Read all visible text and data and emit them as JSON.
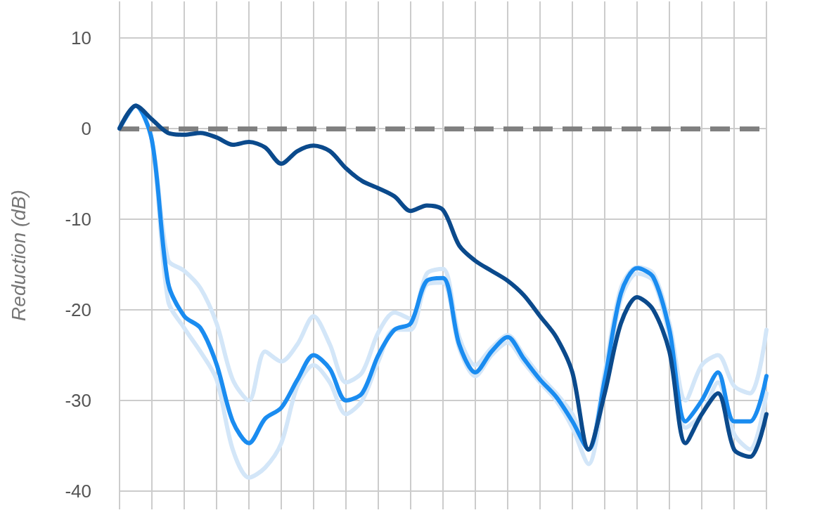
{
  "chart_data": {
    "type": "line",
    "ylabel": "Reduction (dB)",
    "categories": [
      null,
      null,
      null,
      null,
      null,
      null,
      null,
      null,
      null,
      null,
      null,
      null,
      null,
      null,
      null,
      null,
      null,
      null,
      null,
      null,
      null,
      null,
      null,
      null,
      null,
      null,
      null,
      null,
      null,
      null,
      null,
      null,
      null,
      null,
      null,
      null,
      null,
      null,
      null,
      null,
      null
    ],
    "series": [
      {
        "color": "#d3e6f8",
        "values": [
          0,
          2.5,
          -1.3,
          -14.5,
          -15.7,
          -17.6,
          -21.5,
          -27.7,
          -30,
          -24.6,
          -25.7,
          -23.8,
          -20.7,
          -23.8,
          -28,
          -26.9,
          -22.5,
          -20.3,
          -21,
          -16,
          -15.5,
          -23,
          -26.1,
          -24.2,
          -22.8,
          -25,
          -27.3,
          -29.2,
          -31.5,
          -35.4,
          -26.9,
          -17.6,
          -15.3,
          -16,
          -21.5,
          -30,
          -26.1,
          -25,
          -28.4,
          -29.2,
          -22.2
        ]
      },
      {
        "color": "#d3e6f8",
        "values": [
          0,
          2.5,
          -1.3,
          -19,
          -22,
          -24.6,
          -27.7,
          -35.4,
          -38.5,
          -37.4,
          -34.7,
          -28.4,
          -26.1,
          -28,
          -31.5,
          -30,
          -25.7,
          -22.2,
          -22.2,
          -17.2,
          -17,
          -24.2,
          -27.3,
          -25,
          -23.6,
          -25.8,
          -28,
          -30,
          -33,
          -37,
          -28.4,
          -18.8,
          -16,
          -16.8,
          -23,
          -33,
          -31.5,
          -28,
          -33.7,
          -35.4,
          -29.2
        ]
      },
      {
        "color": "#1a8cf0",
        "values": [
          0,
          2.5,
          -1.3,
          -17,
          -20.7,
          -22,
          -26,
          -32.3,
          -34.7,
          -32,
          -30.8,
          -27.7,
          -25,
          -26.5,
          -30,
          -29.2,
          -25,
          -22.2,
          -21.5,
          -16.8,
          -16.5,
          -23.8,
          -26.9,
          -24.6,
          -23,
          -25.4,
          -27.7,
          -29.6,
          -32.3,
          -35.4,
          -27.7,
          -18.2,
          -15.4,
          -16.4,
          -22.2,
          -32.3,
          -30,
          -26.9,
          -32.3,
          -32.3,
          -27.3
        ]
      },
      {
        "color": "#0b4a8c",
        "values": [
          0,
          2.5,
          1,
          -0.5,
          -0.7,
          -0.5,
          -1,
          -1.8,
          -1.5,
          -2.1,
          -3.9,
          -2.5,
          -1.9,
          -2.5,
          -4.4,
          -5.8,
          -6.6,
          -7.5,
          -9.1,
          -8.5,
          -9,
          -12.9,
          -14.6,
          -15.7,
          -16.8,
          -18.4,
          -20.7,
          -23,
          -26.9,
          -35.4,
          -29.2,
          -21.5,
          -18.6,
          -20,
          -24.6,
          -34.7,
          -31.5,
          -29.2,
          -35.4,
          -36.2,
          -31.5
        ]
      }
    ],
    "ylim": [
      -42,
      14
    ],
    "yticks": [
      -40,
      -30,
      -20,
      -10,
      0,
      10
    ],
    "ref_lines": [
      {
        "axis": "y",
        "value": 0,
        "color": "#808080",
        "line_style": "dashed"
      }
    ],
    "grid": true,
    "marker": "none",
    "line_style": "solid",
    "tick_labels": "y"
  }
}
